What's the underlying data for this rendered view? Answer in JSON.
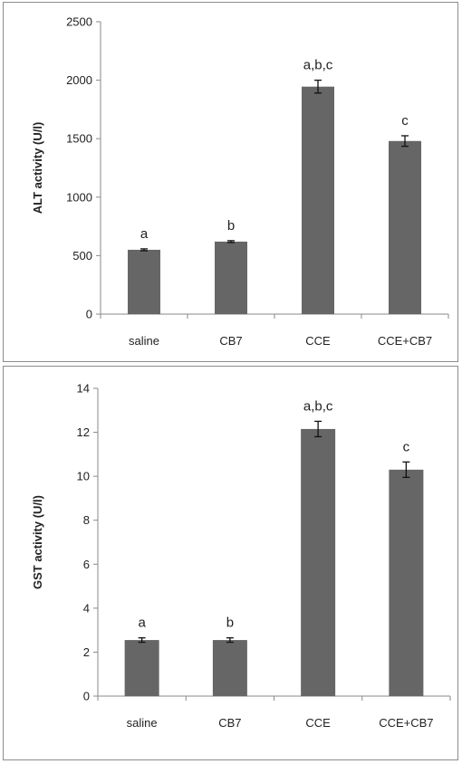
{
  "chart_data": [
    {
      "type": "bar",
      "title": "",
      "xlabel": "",
      "ylabel": "ALT activity (U/l)",
      "ylim": [
        0,
        2500
      ],
      "yticks": [
        0,
        500,
        1000,
        1500,
        2000,
        2500
      ],
      "categories": [
        "saline",
        "CB7",
        "CCE",
        "CCE+CB7"
      ],
      "series": [
        {
          "values": [
            550,
            620,
            1945,
            1480
          ],
          "errors": [
            8,
            8,
            55,
            45
          ]
        }
      ],
      "annotations": [
        "a",
        "b",
        "a,b,c",
        "c"
      ],
      "bar_color": "#666666",
      "grid": false
    },
    {
      "type": "bar",
      "title": "",
      "xlabel": "",
      "ylabel": "GST  activity (U/l)",
      "ylim": [
        0,
        14
      ],
      "yticks": [
        0,
        2,
        4,
        6,
        8,
        10,
        12,
        14
      ],
      "categories": [
        "saline",
        "CB7",
        "CCE",
        "CCE+CB7"
      ],
      "series": [
        {
          "values": [
            2.55,
            2.55,
            12.15,
            10.3
          ],
          "errors": [
            0.1,
            0.1,
            0.35,
            0.35
          ]
        }
      ],
      "annotations": [
        "a",
        "b",
        "a,b,c",
        "c"
      ],
      "bar_color": "#666666",
      "grid": false
    }
  ]
}
